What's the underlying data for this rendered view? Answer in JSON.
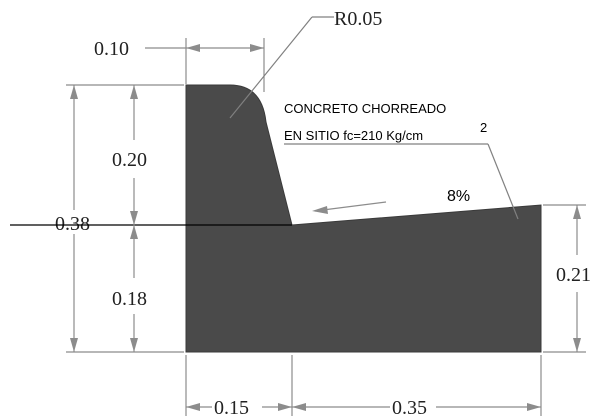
{
  "colors": {
    "section_fill": "#4a4a4a",
    "dimension_line": "#8c8c8c",
    "cut_line": "#000000"
  },
  "labels": {
    "radius": "R0.05",
    "material_line1": "CONCRETO CHORREADO",
    "material_line2_prefix": "EN SITIO fc=210 Kg/cm",
    "material_superscript": "2",
    "slope": "8%"
  },
  "dimensions": {
    "top_width": "0.10",
    "total_height": "0.38",
    "upper_height": "0.20",
    "lower_height": "0.18",
    "right_height": "0.21",
    "curb_base_width": "0.15",
    "gutter_width": "0.35"
  }
}
